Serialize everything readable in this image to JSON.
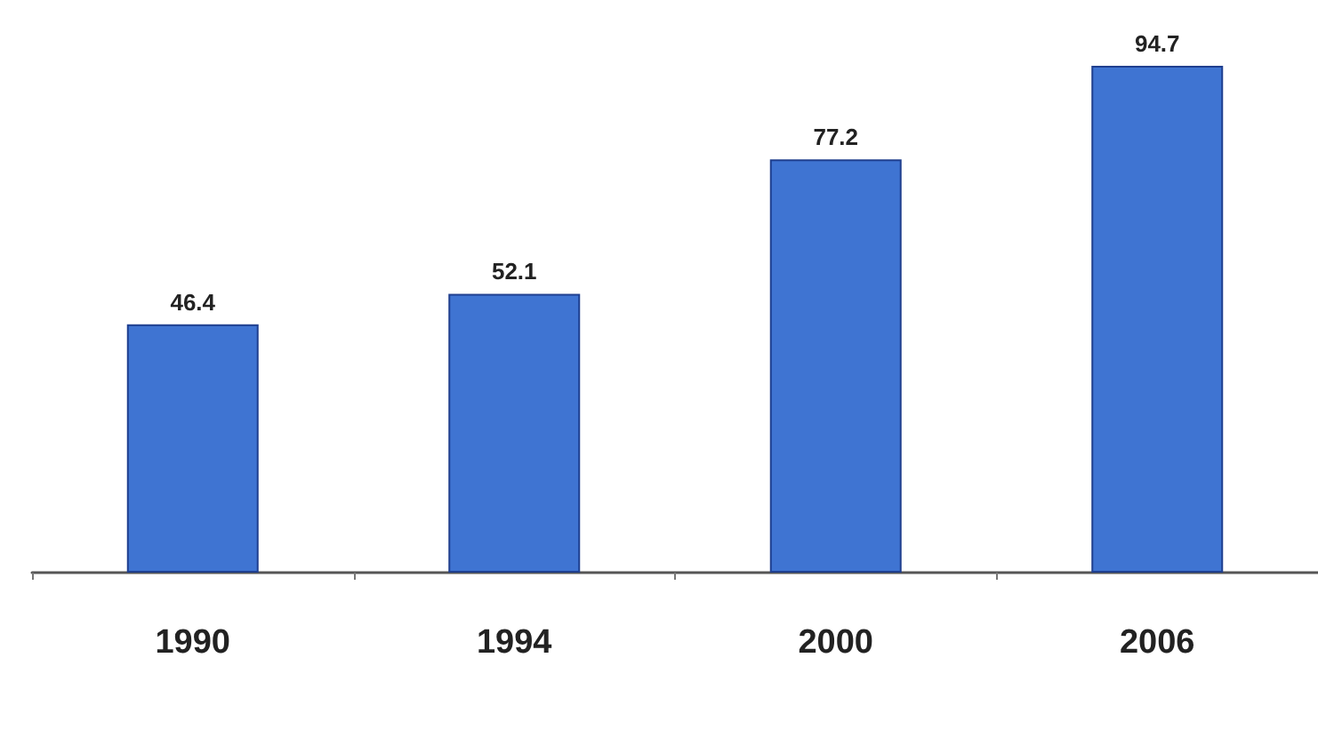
{
  "chart_data": {
    "type": "bar",
    "categories": [
      "1990",
      "1994",
      "2000",
      "2006"
    ],
    "values": [
      46.4,
      52.1,
      77.2,
      94.7
    ],
    "color": "#3f74d2",
    "data_labels": true
  }
}
